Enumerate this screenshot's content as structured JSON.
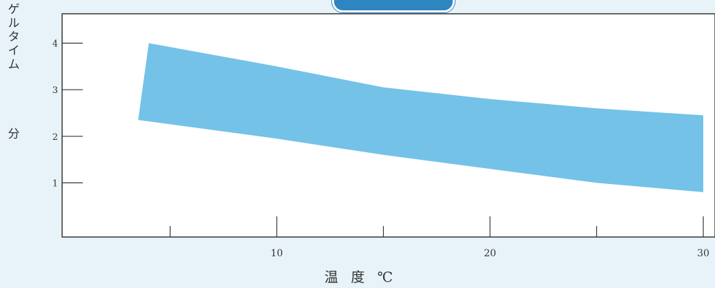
{
  "chart_data": {
    "type": "area",
    "title": "",
    "ylabel": "ゲルタイム",
    "yunit": "分",
    "xlabel": "温 度 ℃",
    "xlim": [
      1.5,
      30.5
    ],
    "ylim": [
      0,
      4.6
    ],
    "xticks": [
      5,
      10,
      15,
      20,
      25,
      30
    ],
    "xtick_labels": [
      "10",
      "20",
      "30"
    ],
    "xtick_label_values": [
      10,
      20,
      30
    ],
    "yticks": [
      1,
      2,
      3,
      4
    ],
    "ytick_labels": [
      "1",
      "2",
      "3",
      "4"
    ],
    "grid": false,
    "band": {
      "upper": [
        [
          4.0,
          4.0
        ],
        [
          10,
          3.5
        ],
        [
          15,
          3.05
        ],
        [
          20,
          2.8
        ],
        [
          25,
          2.6
        ],
        [
          30,
          2.45
        ]
      ],
      "lower": [
        [
          3.5,
          2.35
        ],
        [
          10,
          1.95
        ],
        [
          15,
          1.6
        ],
        [
          20,
          1.3
        ],
        [
          25,
          1.0
        ],
        [
          30,
          0.8
        ]
      ]
    },
    "colors": {
      "band": "#74c2e8",
      "plot_bg": "#ffffff",
      "axis": "#333333",
      "page_bg": "#e7f3f8"
    }
  }
}
